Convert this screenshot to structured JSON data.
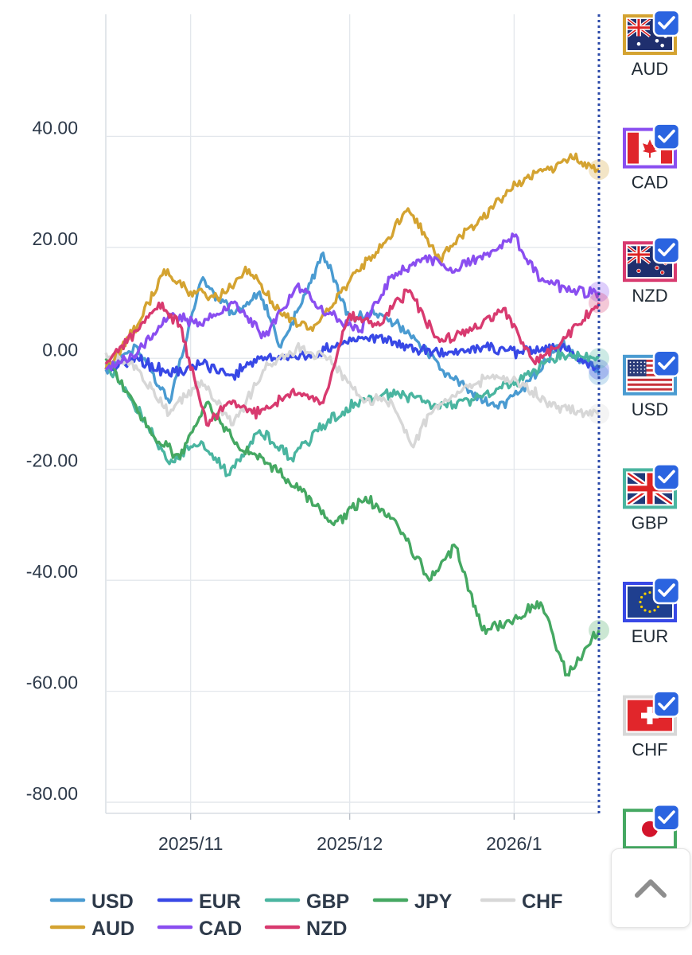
{
  "chart_data": {
    "type": "line",
    "title": "",
    "xlabel": "",
    "ylabel": "",
    "ylim": [
      -82,
      62
    ],
    "y_ticks": [
      "40.00",
      "20.00",
      "0.00",
      "-20.00",
      "-40.00",
      "-60.00",
      "-80.00"
    ],
    "x_ticks": [
      "2025/11",
      "2025/12",
      "2026/1"
    ],
    "x_range": [
      "2025-10-16",
      "2026-01-17"
    ],
    "grid": true,
    "legend_position": "bottom-left",
    "series": [
      {
        "name": "USD",
        "color": "#4a9bd1",
        "x": [
          "2025-10-16",
          "2025-10-22",
          "2025-10-28",
          "2025-11-03",
          "2025-11-09",
          "2025-11-14",
          "2025-11-18",
          "2025-11-22",
          "2025-11-26",
          "2025-12-01",
          "2025-12-06",
          "2025-12-12",
          "2025-12-18",
          "2025-12-24",
          "2025-12-29",
          "2026-01-04",
          "2026-01-10",
          "2026-01-17"
        ],
        "y": [
          -2,
          2,
          -8,
          14,
          8,
          12,
          2,
          10,
          19,
          7,
          8,
          5,
          -2,
          -6,
          -9,
          -4,
          3,
          -3
        ]
      },
      {
        "name": "EUR",
        "color": "#3848e6",
        "x": [
          "2025-10-16",
          "2025-10-22",
          "2025-10-28",
          "2025-11-03",
          "2025-11-09",
          "2025-11-14",
          "2025-11-21",
          "2025-11-28",
          "2025-12-05",
          "2025-12-12",
          "2025-12-19",
          "2025-12-26",
          "2026-01-02",
          "2026-01-10",
          "2026-01-17"
        ],
        "y": [
          -2,
          0,
          -3,
          -1,
          -3,
          0,
          0,
          2,
          4,
          2,
          1,
          2,
          1,
          2,
          -2
        ]
      },
      {
        "name": "GBP",
        "color": "#4ab5a0",
        "x": [
          "2025-10-16",
          "2025-10-20",
          "2025-10-25",
          "2025-10-28",
          "2025-11-03",
          "2025-11-08",
          "2025-11-14",
          "2025-11-20",
          "2025-11-26",
          "2025-12-02",
          "2025-12-10",
          "2025-12-18",
          "2025-12-26",
          "2026-01-02",
          "2026-01-10",
          "2026-01-17"
        ],
        "y": [
          -1,
          -6,
          -14,
          -19,
          -15,
          -21,
          -13,
          -18,
          -12,
          -8,
          -6,
          -9,
          -7,
          -4,
          1,
          0
        ]
      },
      {
        "name": "JPY",
        "color": "#45a862",
        "x": [
          "2025-10-16",
          "2025-10-20",
          "2025-10-25",
          "2025-10-30",
          "2025-11-04",
          "2025-11-10",
          "2025-11-16",
          "2025-11-22",
          "2025-11-28",
          "2025-12-04",
          "2025-12-10",
          "2025-12-16",
          "2025-12-21",
          "2025-12-26",
          "2026-01-01",
          "2026-01-06",
          "2026-01-11",
          "2026-01-17"
        ],
        "y": [
          0,
          -6,
          -14,
          -18,
          -8,
          -16,
          -19,
          -24,
          -30,
          -25,
          -30,
          -40,
          -34,
          -49,
          -47,
          -44,
          -57,
          -49
        ]
      },
      {
        "name": "CHF",
        "color": "#d7d7d7",
        "x": [
          "2025-10-16",
          "2025-10-22",
          "2025-10-28",
          "2025-11-03",
          "2025-11-09",
          "2025-11-15",
          "2025-11-21",
          "2025-11-27",
          "2025-12-03",
          "2025-12-09",
          "2025-12-13",
          "2025-12-16",
          "2025-12-22",
          "2025-12-28",
          "2026-01-03",
          "2026-01-09",
          "2026-01-17"
        ],
        "y": [
          1,
          -2,
          -10,
          -4,
          -12,
          -2,
          2,
          0,
          -7,
          -8,
          -16,
          -10,
          -6,
          -3,
          -5,
          -9,
          -10
        ]
      },
      {
        "name": "AUD",
        "color": "#d4a331",
        "x": [
          "2025-10-16",
          "2025-10-22",
          "2025-10-27",
          "2025-11-01",
          "2025-11-06",
          "2025-11-12",
          "2025-11-18",
          "2025-11-24",
          "2025-12-01",
          "2025-12-07",
          "2025-12-12",
          "2025-12-18",
          "2025-12-22",
          "2025-12-28",
          "2026-01-02",
          "2026-01-07",
          "2026-01-12",
          "2026-01-17"
        ],
        "y": [
          -2,
          6,
          16,
          12,
          11,
          16,
          8,
          5,
          14,
          20,
          27,
          18,
          22,
          27,
          32,
          34,
          36,
          34
        ]
      },
      {
        "name": "CAD",
        "color": "#8a4ef0",
        "x": [
          "2025-10-16",
          "2025-10-22",
          "2025-10-28",
          "2025-11-03",
          "2025-11-09",
          "2025-11-15",
          "2025-11-21",
          "2025-11-27",
          "2025-12-03",
          "2025-12-09",
          "2025-12-15",
          "2025-12-21",
          "2025-12-27",
          "2026-01-01",
          "2026-01-06",
          "2026-01-12",
          "2026-01-17"
        ],
        "y": [
          -2,
          1,
          8,
          6,
          10,
          4,
          13,
          8,
          5,
          15,
          18,
          16,
          19,
          22,
          14,
          12,
          12
        ]
      },
      {
        "name": "NZD",
        "color": "#d83a6f",
        "x": [
          "2025-10-16",
          "2025-10-22",
          "2025-10-26",
          "2025-10-30",
          "2025-11-04",
          "2025-11-08",
          "2025-11-14",
          "2025-11-20",
          "2025-11-26",
          "2025-12-01",
          "2025-12-06",
          "2025-12-12",
          "2025-12-18",
          "2025-12-24",
          "2025-12-30",
          "2026-01-05",
          "2026-01-11",
          "2026-01-17"
        ],
        "y": [
          -1,
          5,
          10,
          6,
          -12,
          -8,
          -10,
          -6,
          -8,
          8,
          6,
          12,
          3,
          5,
          9,
          -1,
          4,
          10
        ]
      }
    ]
  },
  "flag_panel": {
    "items": [
      {
        "code": "AUD",
        "frame_color": "#d4a331"
      },
      {
        "code": "CAD",
        "frame_color": "#8a4ef0"
      },
      {
        "code": "NZD",
        "frame_color": "#d83a6f"
      },
      {
        "code": "USD",
        "frame_color": "#4a9bd1"
      },
      {
        "code": "GBP",
        "frame_color": "#4ab5a0"
      },
      {
        "code": "EUR",
        "frame_color": "#3848e6"
      },
      {
        "code": "CHF",
        "frame_color": "#d7d7d7"
      },
      {
        "code": "JPY",
        "frame_color": "#45a862"
      }
    ]
  },
  "legend": {
    "rows": [
      [
        "USD",
        "EUR",
        "GBP",
        "JPY",
        "CHF"
      ],
      [
        "AUD",
        "CAD",
        "NZD"
      ]
    ]
  },
  "scroll_top": {
    "icon": "chevron-up-icon"
  }
}
